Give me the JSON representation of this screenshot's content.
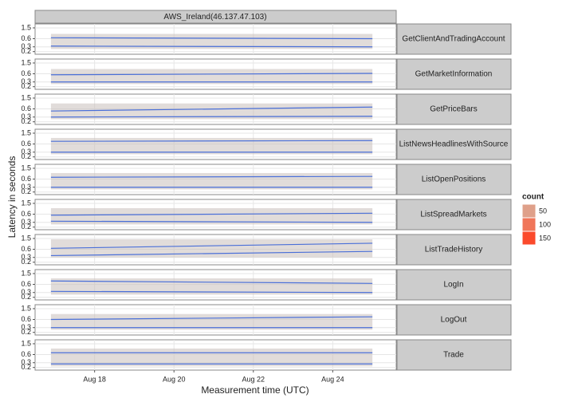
{
  "chart_data": {
    "type": "line",
    "panel_title": "AWS_Ireland(46.137.47.103)",
    "xlabel": "Measurement time (UTC)",
    "ylabel": "Latency in seconds",
    "log_y": true,
    "grid": true,
    "xlim": [
      16.5,
      25.6
    ],
    "xticks": [
      {
        "value": 18,
        "label": "Aug 18"
      },
      {
        "value": 20,
        "label": "Aug 20"
      },
      {
        "value": 22,
        "label": "Aug 22"
      },
      {
        "value": 24,
        "label": "Aug 24"
      }
    ],
    "ylim": [
      0.16,
      2.1
    ],
    "yticks": [
      0.2,
      0.3,
      0.6,
      1.5
    ],
    "trend_color": "#4a6fd8",
    "spread_color": "#c8c0bc",
    "trend_x": [
      16.9,
      25
    ],
    "facets": [
      {
        "label": "GetClientAndTradingAccount",
        "spread": [
          0.25,
          0.9
        ],
        "trend_upper": [
          0.65,
          0.6
        ],
        "trend_lower": [
          0.32,
          0.3
        ]
      },
      {
        "label": "GetMarketInformation",
        "spread": [
          0.25,
          0.9
        ],
        "trend_upper": [
          0.55,
          0.62
        ],
        "trend_lower": [
          0.3,
          0.3
        ]
      },
      {
        "label": "GetPriceBars",
        "spread": [
          0.25,
          0.95
        ],
        "trend_upper": [
          0.5,
          0.7
        ],
        "trend_lower": [
          0.3,
          0.32
        ]
      },
      {
        "label": "ListNewsHeadlinesWithSource",
        "spread": [
          0.25,
          1.0
        ],
        "trend_upper": [
          0.75,
          0.8
        ],
        "trend_lower": [
          0.3,
          0.3
        ]
      },
      {
        "label": "ListOpenPositions",
        "spread": [
          0.25,
          1.0
        ],
        "trend_upper": [
          0.7,
          0.75
        ],
        "trend_lower": [
          0.3,
          0.3
        ]
      },
      {
        "label": "ListSpreadMarkets",
        "spread": [
          0.25,
          1.0
        ],
        "trend_upper": [
          0.55,
          0.65
        ],
        "trend_lower": [
          0.33,
          0.3
        ]
      },
      {
        "label": "ListTradeHistory",
        "spread": [
          0.3,
          1.4
        ],
        "trend_upper": [
          0.65,
          1.0
        ],
        "trend_lower": [
          0.35,
          0.5
        ]
      },
      {
        "label": "LogIn",
        "spread": [
          0.25,
          1.0
        ],
        "trend_upper": [
          0.8,
          0.65
        ],
        "trend_lower": [
          0.33,
          0.3
        ]
      },
      {
        "label": "LogOut",
        "spread": [
          0.25,
          0.95
        ],
        "trend_upper": [
          0.6,
          0.75
        ],
        "trend_lower": [
          0.3,
          0.3
        ]
      },
      {
        "label": "Trade",
        "spread": [
          0.22,
          1.0
        ],
        "trend_upper": [
          0.7,
          0.7
        ],
        "trend_lower": [
          0.27,
          0.27
        ]
      }
    ],
    "legend": {
      "title": "count",
      "values": [
        50,
        100,
        150
      ],
      "colors": [
        "#dfa08a",
        "#f0765a",
        "#fb4a2c"
      ]
    }
  }
}
